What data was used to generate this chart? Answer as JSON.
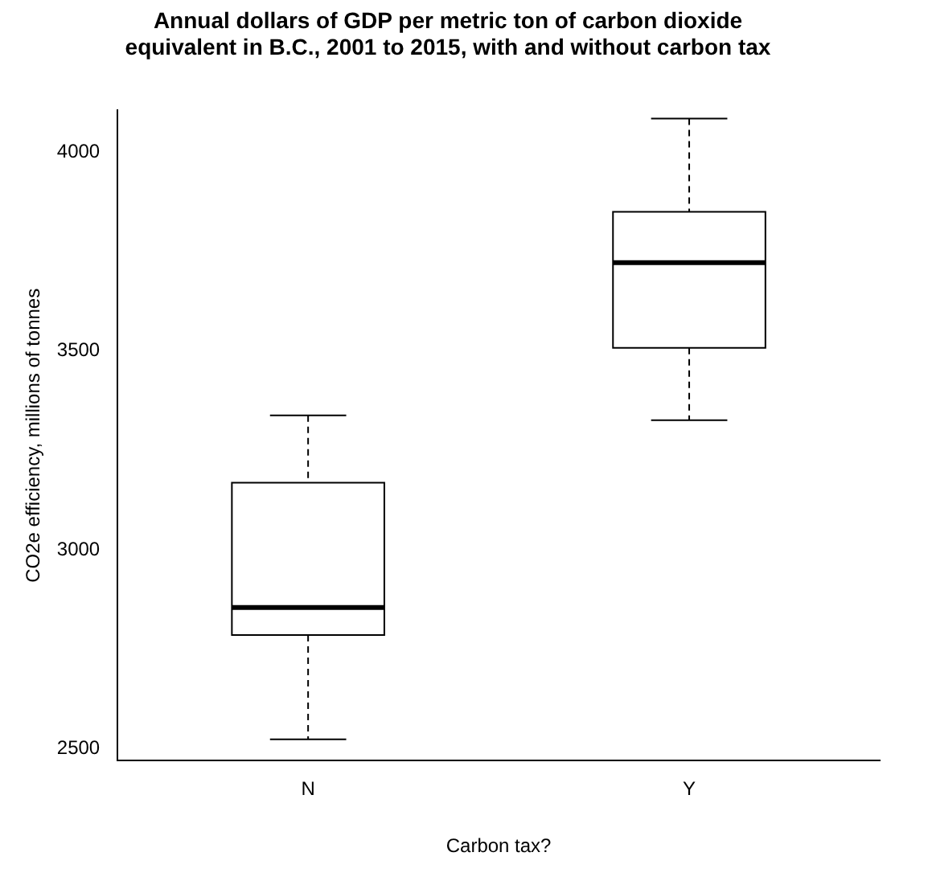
{
  "chart_data": {
    "type": "box",
    "title": "Annual dollars of GDP per metric ton of carbon dioxide\nequivalent in B.C., 2001 to 2015, with and without carbon tax",
    "xlabel": "Carbon tax?",
    "ylabel": "CO2e efficiency, millions of tonnes",
    "categories": [
      "N",
      "Y"
    ],
    "color": "#000000",
    "boxes": [
      {
        "low": 2524,
        "q1": 2786,
        "median": 2855,
        "q3": 3169,
        "high": 3338
      },
      {
        "low": 3326,
        "q1": 3508,
        "median": 3722,
        "q3": 3850,
        "high": 4084
      }
    ],
    "ylim": [
      2470,
      4105
    ],
    "yticks": [
      2500,
      3000,
      3500,
      4000
    ],
    "grid": false,
    "legend": false
  }
}
